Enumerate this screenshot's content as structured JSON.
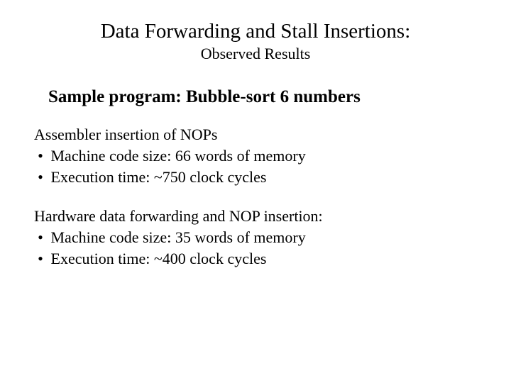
{
  "title": "Data Forwarding and Stall Insertions:",
  "subtitle": "Observed Results",
  "heading": "Sample program:  Bubble-sort 6 numbers",
  "sections": [
    {
      "label": "Assembler insertion of NOPs",
      "bullets": [
        "Machine code size:  66 words of memory",
        "Execution time:  ~750 clock cycles"
      ]
    },
    {
      "label": "Hardware data forwarding and NOP insertion:",
      "bullets": [
        "Machine code size:  35 words of memory",
        "Execution time:  ~400 clock cycles"
      ]
    }
  ],
  "bullet_glyph": "•",
  "colors": {
    "background": "#ffffff",
    "text": "#000000"
  }
}
